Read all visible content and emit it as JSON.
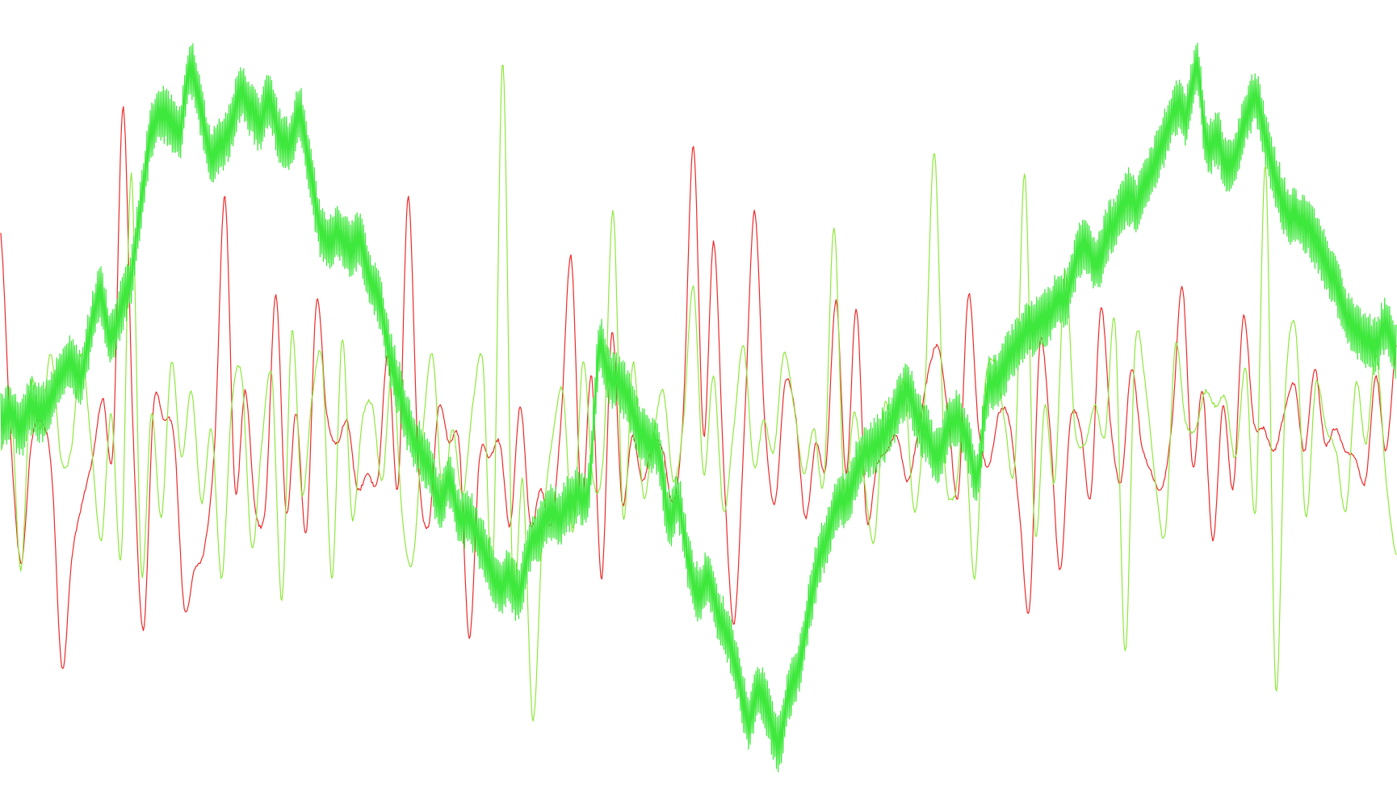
{
  "chart_data": {
    "type": "line",
    "title": "",
    "xlabel": "",
    "ylabel": "",
    "xlim": [
      0,
      1730
    ],
    "ylim": [
      -1,
      1
    ],
    "grid": false,
    "legend": "none",
    "axes_visible": false,
    "series": [
      {
        "color": "#ee2a2a",
        "style": "smooth-oscillating",
        "values": [
          0.46,
          -0.1,
          -0.42,
          -0.1,
          -0.04,
          -0.18,
          -0.7,
          -0.4,
          -0.26,
          -0.14,
          0.02,
          -0.12,
          0.8,
          -0.08,
          -0.6,
          0.0,
          -0.04,
          -0.08,
          -0.54,
          -0.44,
          -0.38,
          -0.1,
          0.56,
          -0.22,
          0.04,
          -0.28,
          -0.26,
          0.3,
          -0.28,
          -0.02,
          -0.34,
          0.28,
          -0.02,
          -0.1,
          -0.04,
          -0.22,
          -0.18,
          -0.2,
          0.14,
          -0.22,
          0.56,
          -0.16,
          -0.32,
          0.0,
          -0.1,
          -0.1,
          -0.62,
          -0.14,
          -0.14,
          -0.1,
          -0.32,
          0.0,
          -0.32,
          -0.22,
          -0.32,
          -0.04,
          0.4,
          -0.26,
          0.08,
          -0.46,
          0.2,
          -0.26,
          -0.08,
          -0.2,
          -0.1,
          -0.12,
          -0.26,
          -0.02,
          0.7,
          -0.08,
          0.44,
          -0.18,
          -0.58,
          -0.06,
          0.52,
          -0.04,
          -0.26,
          0.06,
          -0.02,
          -0.3,
          -0.1,
          -0.16,
          0.28,
          -0.18,
          0.26,
          -0.3,
          -0.16,
          -0.12,
          -0.08,
          -0.2,
          -0.08,
          0.08,
          0.16,
          -0.02,
          -0.24,
          0.3,
          -0.06,
          -0.16,
          -0.02,
          -0.04,
          -0.28,
          -0.54,
          0.16,
          -0.06,
          -0.44,
          -0.04,
          -0.06,
          -0.24,
          0.26,
          -0.06,
          -0.2,
          0.1,
          -0.1,
          -0.18,
          -0.22,
          -0.04,
          0.32,
          -0.16,
          0.04,
          -0.36,
          0.0,
          -0.22,
          0.24,
          -0.04,
          -0.06,
          -0.12,
          -0.02,
          0.06,
          -0.12,
          0.1,
          -0.1,
          -0.06,
          -0.12,
          -0.14,
          -0.2,
          0.08,
          -0.12,
          0.16
        ]
      },
      {
        "color": "#8ee83c",
        "style": "smooth-oscillating",
        "values": [
          -0.12,
          0.0,
          -0.44,
          0.06,
          -0.06,
          0.14,
          -0.14,
          -0.12,
          0.14,
          -0.1,
          -0.36,
          -0.02,
          -0.4,
          0.62,
          -0.44,
          -0.02,
          -0.3,
          0.12,
          -0.14,
          0.04,
          -0.26,
          -0.06,
          -0.46,
          0.0,
          0.08,
          -0.38,
          -0.1,
          0.08,
          -0.52,
          0.2,
          -0.24,
          0.02,
          0.12,
          -0.46,
          0.18,
          -0.3,
          -0.04,
          0.0,
          -0.2,
          0.1,
          -0.3,
          -0.42,
          -0.08,
          0.14,
          -0.24,
          -0.06,
          -0.24,
          0.0,
          0.12,
          -0.44,
          0.92,
          -0.48,
          -0.2,
          -0.84,
          -0.32,
          -0.08,
          0.04,
          -0.34,
          0.12,
          -0.2,
          -0.14,
          0.52,
          -0.3,
          0.12,
          -0.24,
          -0.08,
          0.04,
          -0.2,
          -0.04,
          0.32,
          -0.18,
          0.08,
          -0.28,
          -0.06,
          0.16,
          -0.16,
          -0.04,
          -0.12,
          0.14,
          0.0,
          -0.18,
          -0.06,
          -0.2,
          0.48,
          -0.22,
          -0.02,
          -0.2,
          -0.36,
          0.0,
          -0.06,
          0.06,
          -0.28,
          0.0,
          0.68,
          -0.14,
          -0.24,
          -0.06,
          -0.46,
          0.04,
          0.12,
          -0.04,
          -0.16,
          0.62,
          -0.34,
          0.0,
          -0.2,
          0.36,
          -0.06,
          -0.1,
          0.0,
          -0.08,
          0.22,
          -0.66,
          0.16,
          0.06,
          -0.2,
          -0.34,
          0.16,
          -0.04,
          -0.06,
          0.04,
          0.0,
          0.02,
          -0.14,
          0.1,
          -0.28,
          0.64,
          -0.76,
          0.06,
          0.2,
          -0.3,
          0.06,
          -0.06,
          -0.12,
          -0.28,
          0.06,
          -0.1,
          0.14,
          -0.2,
          -0.4
        ]
      },
      {
        "color": "#3ee83c",
        "style": "noisy-trend",
        "values": [
          -0.04,
          -0.02,
          -0.06,
          0.0,
          -0.02,
          0.02,
          0.08,
          0.12,
          0.08,
          0.2,
          0.3,
          0.18,
          0.26,
          0.34,
          0.52,
          0.72,
          0.78,
          0.76,
          0.74,
          0.9,
          0.8,
          0.68,
          0.7,
          0.74,
          0.84,
          0.8,
          0.76,
          0.82,
          0.72,
          0.7,
          0.78,
          0.64,
          0.48,
          0.44,
          0.46,
          0.42,
          0.44,
          0.34,
          0.28,
          0.14,
          0.04,
          -0.06,
          -0.12,
          -0.16,
          -0.26,
          -0.2,
          -0.3,
          -0.3,
          -0.36,
          -0.42,
          -0.48,
          -0.46,
          -0.5,
          -0.38,
          -0.34,
          -0.28,
          -0.3,
          -0.26,
          -0.24,
          -0.22,
          0.14,
          0.08,
          0.06,
          0.02,
          -0.06,
          -0.1,
          -0.12,
          -0.3,
          -0.26,
          -0.42,
          -0.5,
          -0.46,
          -0.56,
          -0.62,
          -0.72,
          -0.84,
          -0.76,
          -0.82,
          -0.9,
          -0.78,
          -0.7,
          -0.56,
          -0.42,
          -0.34,
          -0.26,
          -0.24,
          -0.16,
          -0.12,
          -0.1,
          -0.06,
          0.0,
          0.04,
          -0.04,
          -0.08,
          -0.14,
          -0.06,
          -0.04,
          -0.1,
          -0.18,
          0.04,
          0.06,
          0.12,
          0.16,
          0.2,
          0.22,
          0.24,
          0.28,
          0.3,
          0.4,
          0.42,
          0.38,
          0.46,
          0.5,
          0.56,
          0.54,
          0.6,
          0.66,
          0.74,
          0.8,
          0.78,
          0.9,
          0.7,
          0.72,
          0.64,
          0.68,
          0.78,
          0.82,
          0.7,
          0.6,
          0.52,
          0.5,
          0.48,
          0.44,
          0.38,
          0.32,
          0.24,
          0.2,
          0.18,
          0.16,
          0.22,
          0.14
        ]
      }
    ]
  }
}
